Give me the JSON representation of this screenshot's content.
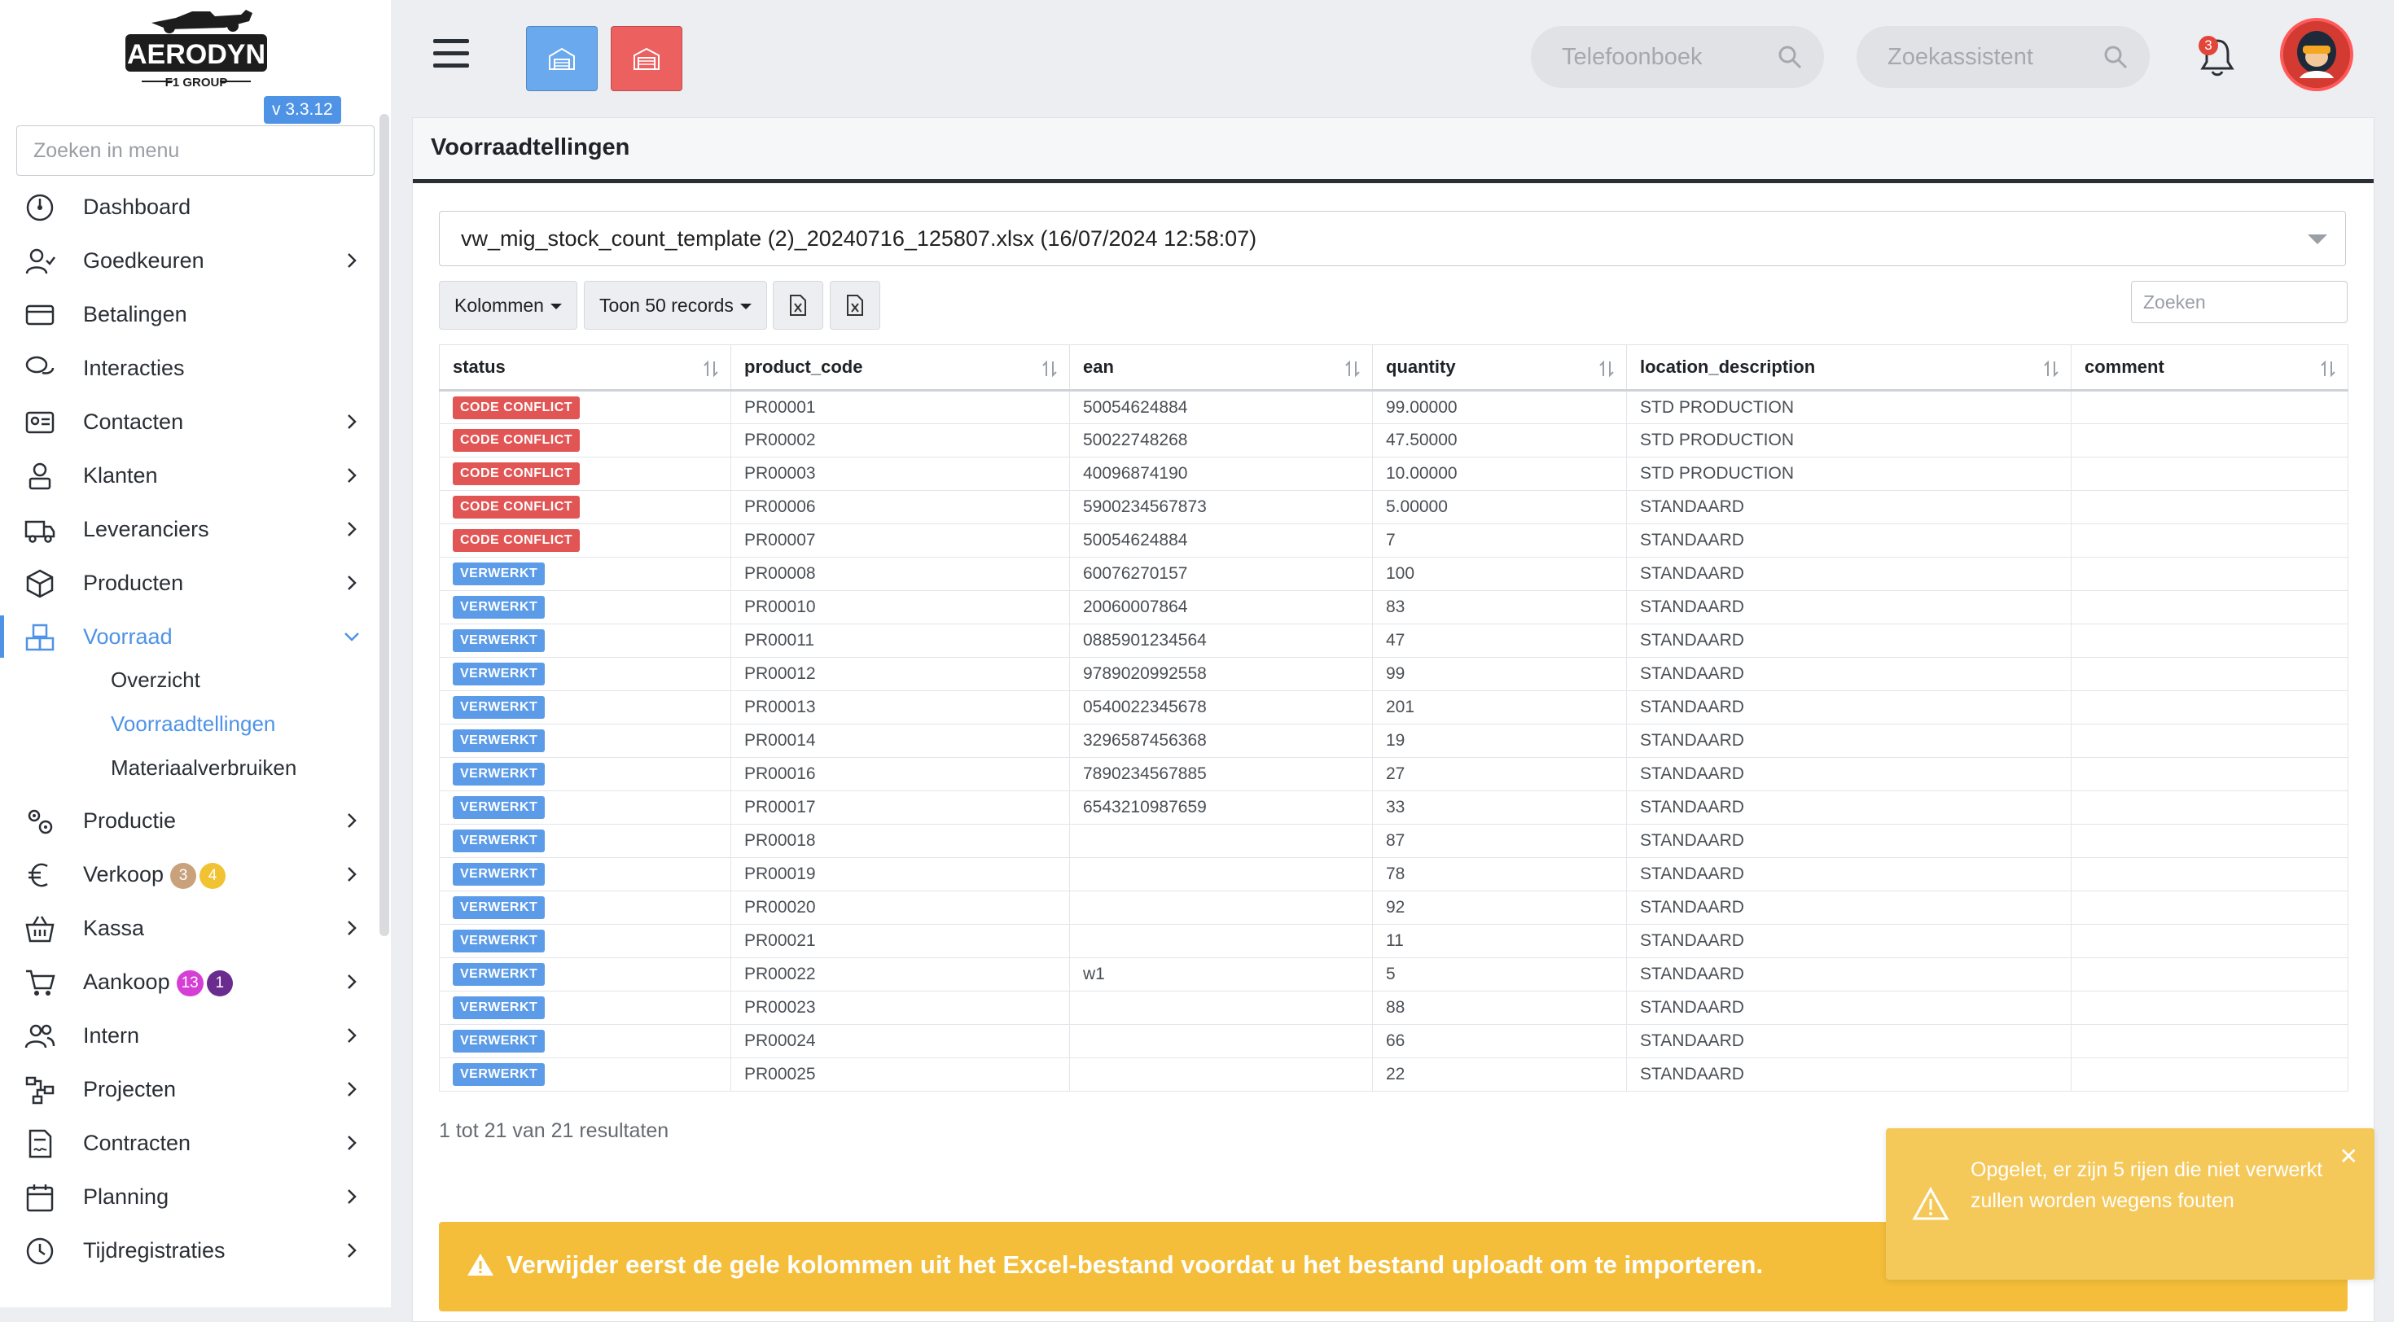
{
  "app": {
    "brand": "AERODYN",
    "brand_sub": "F1 GROUP",
    "version": "v 3.3.12"
  },
  "sidebar": {
    "search_placeholder": "Zoeken in menu",
    "items": [
      {
        "label": "Dashboard",
        "icon": "dashboard-icon"
      },
      {
        "label": "Goedkeuren",
        "icon": "user-check-icon"
      },
      {
        "label": "Betalingen",
        "icon": "credit-card-icon"
      },
      {
        "label": "Interacties",
        "icon": "chat-icon"
      },
      {
        "label": "Contacten",
        "icon": "contact-card-icon"
      },
      {
        "label": "Klanten",
        "icon": "customer-icon"
      },
      {
        "label": "Leveranciers",
        "icon": "truck-icon"
      },
      {
        "label": "Producten",
        "icon": "box-icon"
      },
      {
        "label": "Voorraad",
        "icon": "boxes-icon"
      },
      {
        "label": "Productie",
        "icon": "gears-icon"
      },
      {
        "label": "Verkoop",
        "icon": "euro-icon"
      },
      {
        "label": "Kassa",
        "icon": "basket-icon"
      },
      {
        "label": "Aankoop",
        "icon": "cart-icon"
      },
      {
        "label": "Intern",
        "icon": "users-icon"
      },
      {
        "label": "Projecten",
        "icon": "project-icon"
      },
      {
        "label": "Contracten",
        "icon": "contract-icon"
      },
      {
        "label": "Planning",
        "icon": "calendar-icon"
      },
      {
        "label": "Tijdregistraties",
        "icon": "clock-icon"
      }
    ],
    "voorraad_sub": [
      "Overzicht",
      "Voorraadtellingen",
      "Materiaalverbruiken"
    ],
    "badges": {
      "verkoop_a": "3",
      "verkoop_b": "4",
      "aankoop_a": "13",
      "aankoop_b": "1"
    }
  },
  "topbar": {
    "search1_placeholder": "Telefoonboek",
    "search2_placeholder": "Zoekassistent",
    "notifications_count": "3"
  },
  "page": {
    "title": "Voorraadtellingen",
    "file_select": "vw_mig_stock_count_template (2)_20240716_125807.xlsx (16/07/2024 12:58:07)",
    "columns_btn": "Kolommen",
    "records_btn": "Toon 50 records",
    "table_search_placeholder": "Zoeken",
    "headers": [
      "status",
      "product_code",
      "ean",
      "quantity",
      "location_description",
      "comment"
    ],
    "rows": [
      {
        "status": "CODE CONFLICT",
        "product_code": "PR00001",
        "ean": "50054624884",
        "quantity": "99.00000",
        "location": "STD PRODUCTION",
        "comment": ""
      },
      {
        "status": "CODE CONFLICT",
        "product_code": "PR00002",
        "ean": "50022748268",
        "quantity": "47.50000",
        "location": "STD PRODUCTION",
        "comment": ""
      },
      {
        "status": "CODE CONFLICT",
        "product_code": "PR00003",
        "ean": "40096874190",
        "quantity": "10.00000",
        "location": "STD PRODUCTION",
        "comment": ""
      },
      {
        "status": "CODE CONFLICT",
        "product_code": "PR00006",
        "ean": "5900234567873",
        "quantity": "5.00000",
        "location": "STANDAARD",
        "comment": ""
      },
      {
        "status": "CODE CONFLICT",
        "product_code": "PR00007",
        "ean": "50054624884",
        "quantity": "7",
        "location": "STANDAARD",
        "comment": ""
      },
      {
        "status": "VERWERKT",
        "product_code": "PR00008",
        "ean": "60076270157",
        "quantity": "100",
        "location": "STANDAARD",
        "comment": ""
      },
      {
        "status": "VERWERKT",
        "product_code": "PR00010",
        "ean": "20060007864",
        "quantity": "83",
        "location": "STANDAARD",
        "comment": ""
      },
      {
        "status": "VERWERKT",
        "product_code": "PR00011",
        "ean": "0885901234564",
        "quantity": "47",
        "location": "STANDAARD",
        "comment": ""
      },
      {
        "status": "VERWERKT",
        "product_code": "PR00012",
        "ean": "9789020992558",
        "quantity": "99",
        "location": "STANDAARD",
        "comment": ""
      },
      {
        "status": "VERWERKT",
        "product_code": "PR00013",
        "ean": "0540022345678",
        "quantity": "201",
        "location": "STANDAARD",
        "comment": ""
      },
      {
        "status": "VERWERKT",
        "product_code": "PR00014",
        "ean": "3296587456368",
        "quantity": "19",
        "location": "STANDAARD",
        "comment": ""
      },
      {
        "status": "VERWERKT",
        "product_code": "PR00016",
        "ean": "7890234567885",
        "quantity": "27",
        "location": "STANDAARD",
        "comment": ""
      },
      {
        "status": "VERWERKT",
        "product_code": "PR00017",
        "ean": "6543210987659",
        "quantity": "33",
        "location": "STANDAARD",
        "comment": ""
      },
      {
        "status": "VERWERKT",
        "product_code": "PR00018",
        "ean": "",
        "quantity": "87",
        "location": "STANDAARD",
        "comment": ""
      },
      {
        "status": "VERWERKT",
        "product_code": "PR00019",
        "ean": "",
        "quantity": "78",
        "location": "STANDAARD",
        "comment": ""
      },
      {
        "status": "VERWERKT",
        "product_code": "PR00020",
        "ean": "",
        "quantity": "92",
        "location": "STANDAARD",
        "comment": ""
      },
      {
        "status": "VERWERKT",
        "product_code": "PR00021",
        "ean": "",
        "quantity": "11",
        "location": "STANDAARD",
        "comment": ""
      },
      {
        "status": "VERWERKT",
        "product_code": "PR00022",
        "ean": "w1",
        "quantity": "5",
        "location": "STANDAARD",
        "comment": ""
      },
      {
        "status": "VERWERKT",
        "product_code": "PR00023",
        "ean": "",
        "quantity": "88",
        "location": "STANDAARD",
        "comment": ""
      },
      {
        "status": "VERWERKT",
        "product_code": "PR00024",
        "ean": "",
        "quantity": "66",
        "location": "STANDAARD",
        "comment": ""
      },
      {
        "status": "VERWERKT",
        "product_code": "PR00025",
        "ean": "",
        "quantity": "22",
        "location": "STANDAARD",
        "comment": ""
      }
    ],
    "results_text": "1 tot 21 van 21 resultaten",
    "alert_text": "Verwijder eerst de gele kolommen uit het Excel-bestand voordat u het bestand uploadt om te importeren.",
    "toast_text": "Opgelet, er zijn 5 rijen die niet verwerkt zullen worden wegens fouten"
  },
  "colors": {
    "accent": "#4e93e6",
    "conflict": "#e25555",
    "processed": "#5b9be8",
    "warning": "#f4be3a"
  }
}
